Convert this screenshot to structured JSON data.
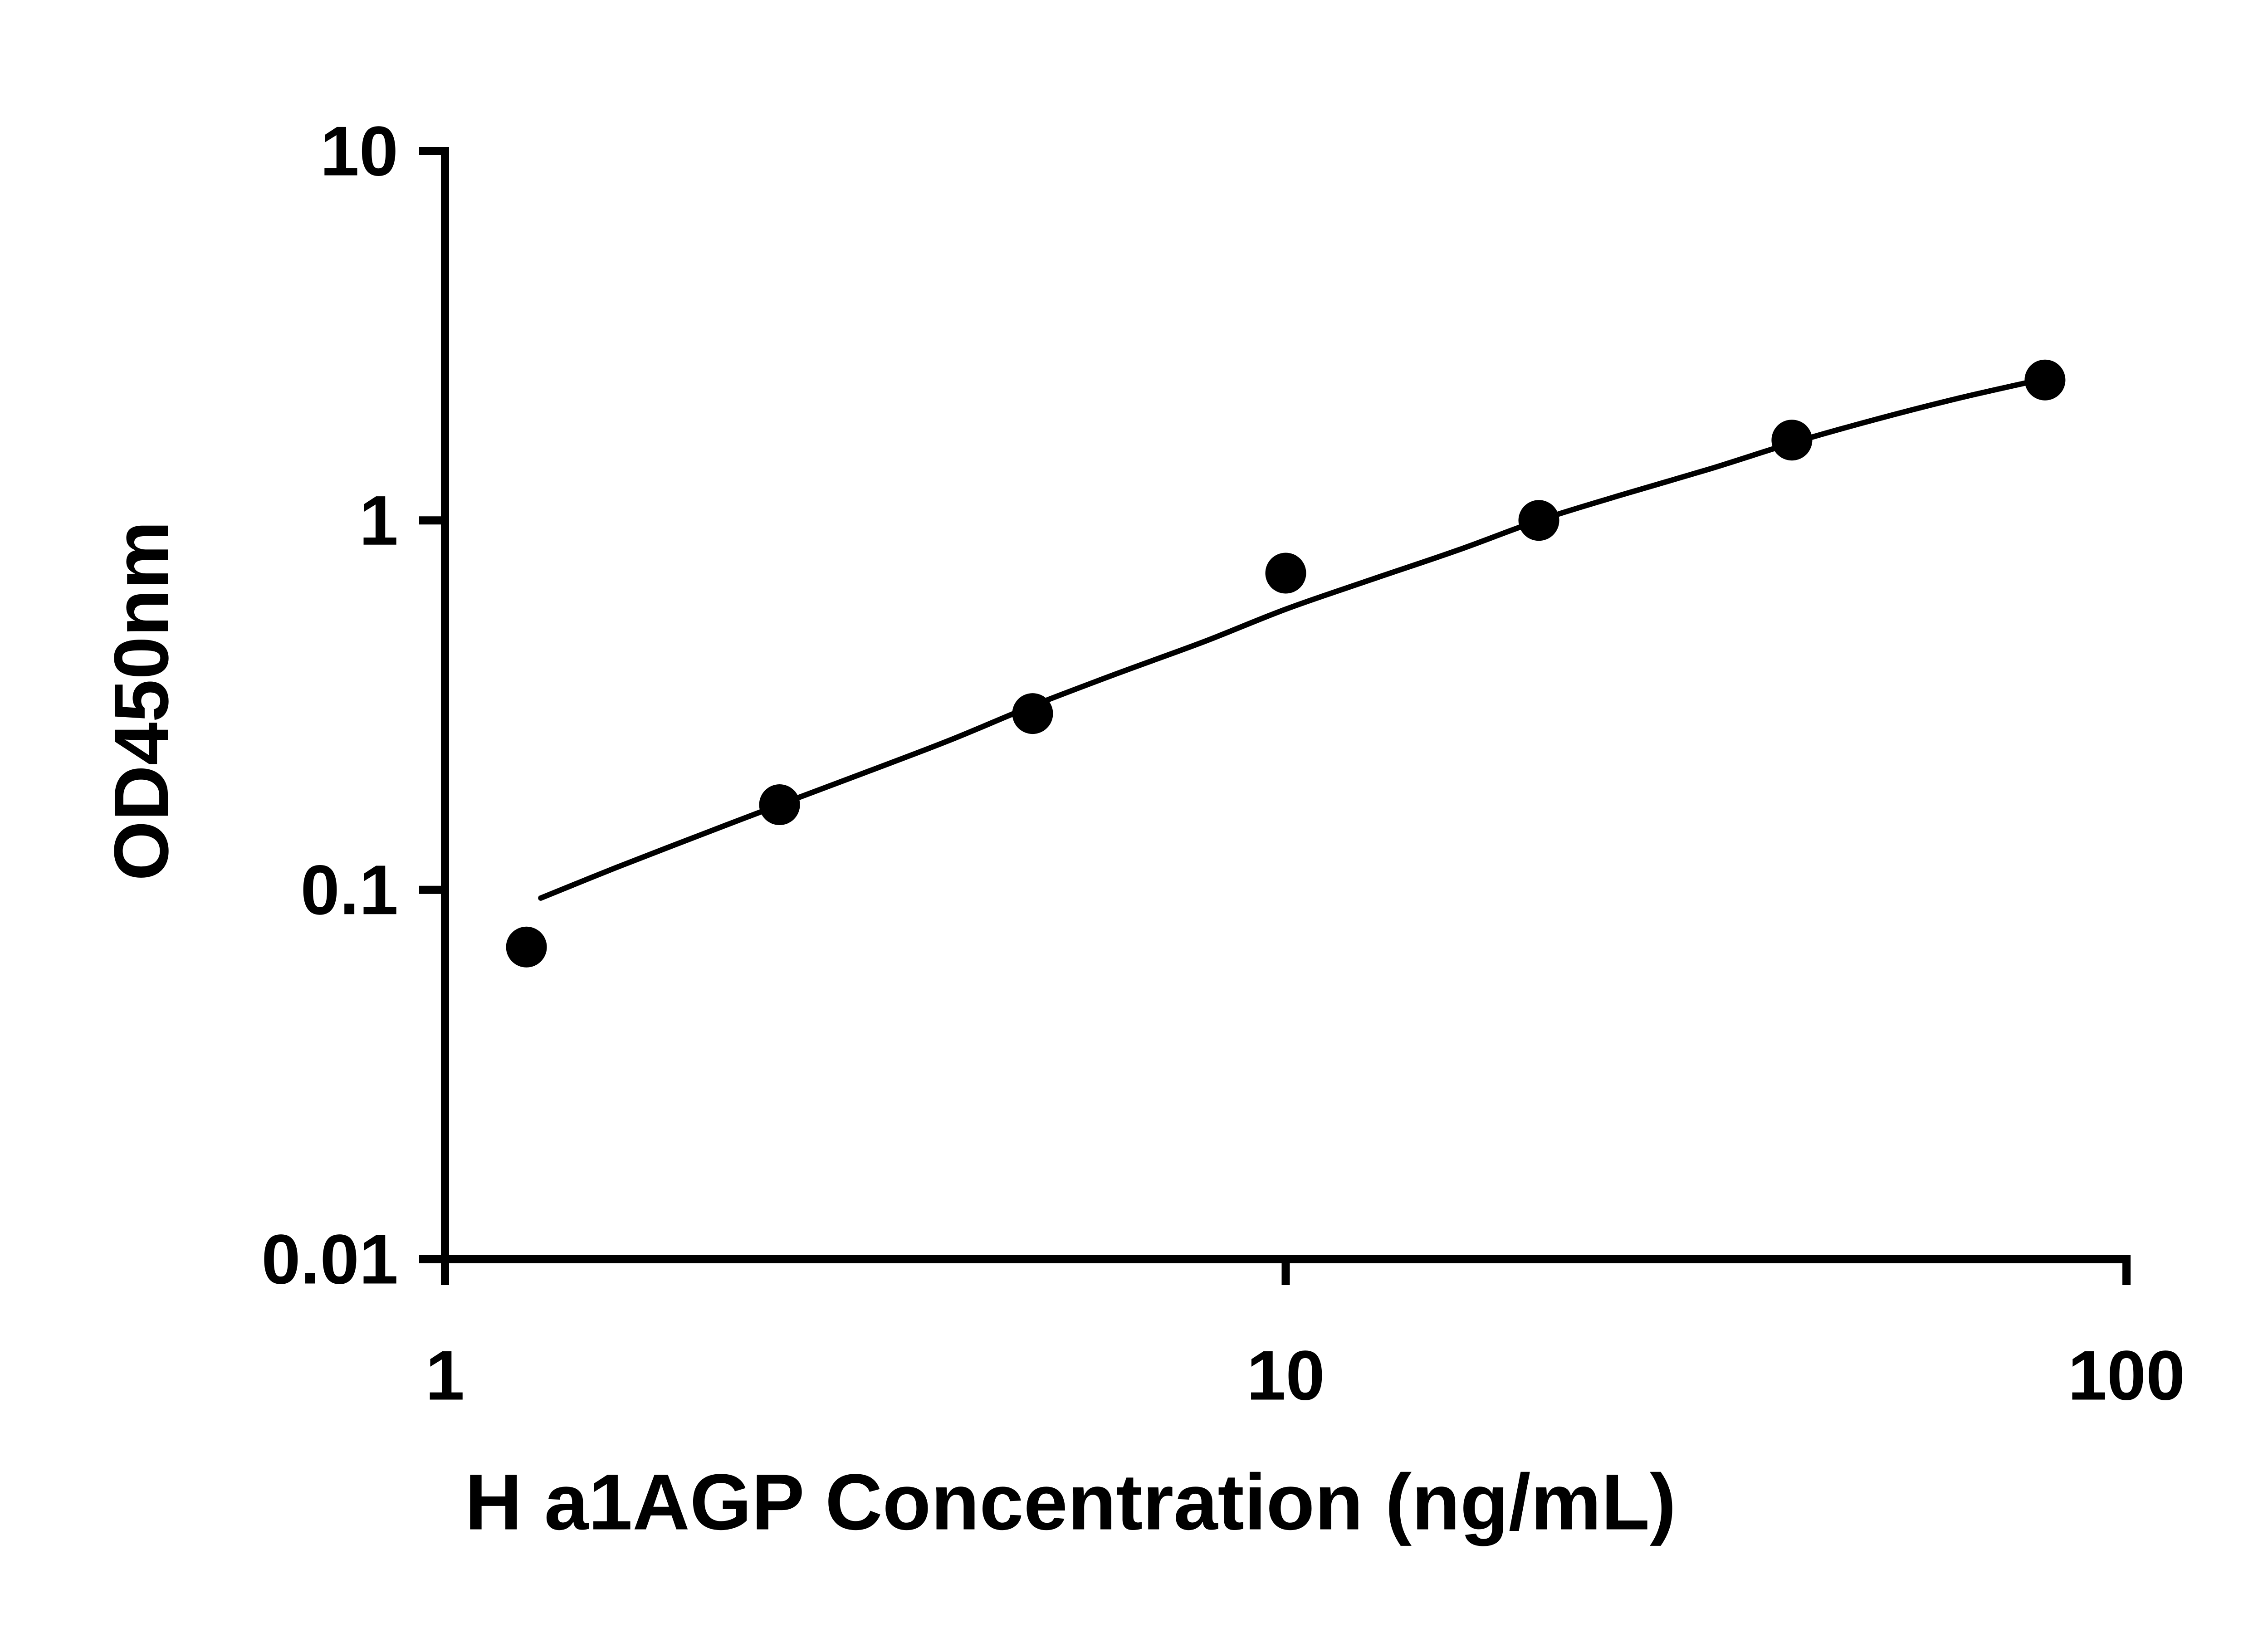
{
  "figure": {
    "background_color": "#ffffff",
    "axis_color": "#000000",
    "point_color": "#000000",
    "curve_color": "#000000"
  },
  "chart_data": {
    "type": "scatter",
    "title": "",
    "xlabel": "H a1AGP Concentration (ng/mL)",
    "ylabel": "OD450nm",
    "x_scale": "log10",
    "y_scale": "log10",
    "xlim": [
      1,
      100
    ],
    "ylim": [
      0.01,
      10
    ],
    "grid": false,
    "legend": "none",
    "x_ticks": {
      "values": [
        1,
        10,
        100
      ],
      "labels": [
        "1",
        "10",
        "100"
      ]
    },
    "y_ticks": {
      "values": [
        10,
        1,
        0.1,
        0.01
      ],
      "labels": [
        "10",
        "1",
        "0.1",
        "0.01"
      ]
    },
    "series": [
      {
        "name": "standard-points",
        "type": "scatter",
        "marker": "filled-circle",
        "x": [
          1.25,
          2.5,
          5,
          10,
          20,
          40,
          80
        ],
        "y": [
          0.07,
          0.17,
          0.3,
          0.72,
          1.0,
          1.65,
          2.4
        ]
      },
      {
        "name": "fit-curve",
        "type": "line",
        "x": [
          1.3,
          1.6,
          2.0,
          2.5,
          3.2,
          4.0,
          5.0,
          6.3,
          8.0,
          10.0,
          12.6,
          16.0,
          20.0,
          25.0,
          32.0,
          40.0,
          50.0,
          63.0,
          80.0
        ],
        "y": [
          0.095,
          0.115,
          0.14,
          0.17,
          0.21,
          0.255,
          0.315,
          0.385,
          0.47,
          0.575,
          0.69,
          0.83,
          1.0,
          1.17,
          1.38,
          1.62,
          1.87,
          2.14,
          2.42
        ]
      }
    ]
  }
}
